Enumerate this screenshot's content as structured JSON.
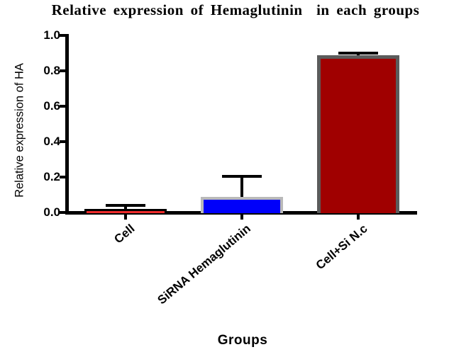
{
  "chart_data": {
    "type": "bar",
    "title": "Relative expression of Hemaglutinin  in each groups",
    "xlabel": "Groups",
    "ylabel": "Relative expression of HA",
    "categories": [
      "Cell",
      "SiRNA Hemaglutinin",
      "Cell+Si N.c"
    ],
    "values": [
      0.02,
      0.09,
      0.89
    ],
    "error_bar_tops": [
      0.04,
      0.205,
      0.9
    ],
    "ylim": [
      0.0,
      1.0
    ],
    "yticks": [
      1.0,
      0.8,
      0.6,
      0.4,
      0.2,
      0.0
    ],
    "ytick_labels": [
      "1.0",
      "0.8",
      "0.6",
      "0.4",
      "0.2",
      "0.0"
    ],
    "grid": false,
    "legend": false,
    "background": "#FFFFFF",
    "axis_color": "#000000",
    "error_color": "#000000",
    "bar_styles": [
      {
        "fill": "#ED2A2A",
        "border": "#000000",
        "border_width": 3
      },
      {
        "fill": "#0000FA",
        "border": "#B9B9B9",
        "border_width": 4
      },
      {
        "fill": "#A00000",
        "border": "#5B5B5B",
        "border_width": 5
      }
    ]
  }
}
